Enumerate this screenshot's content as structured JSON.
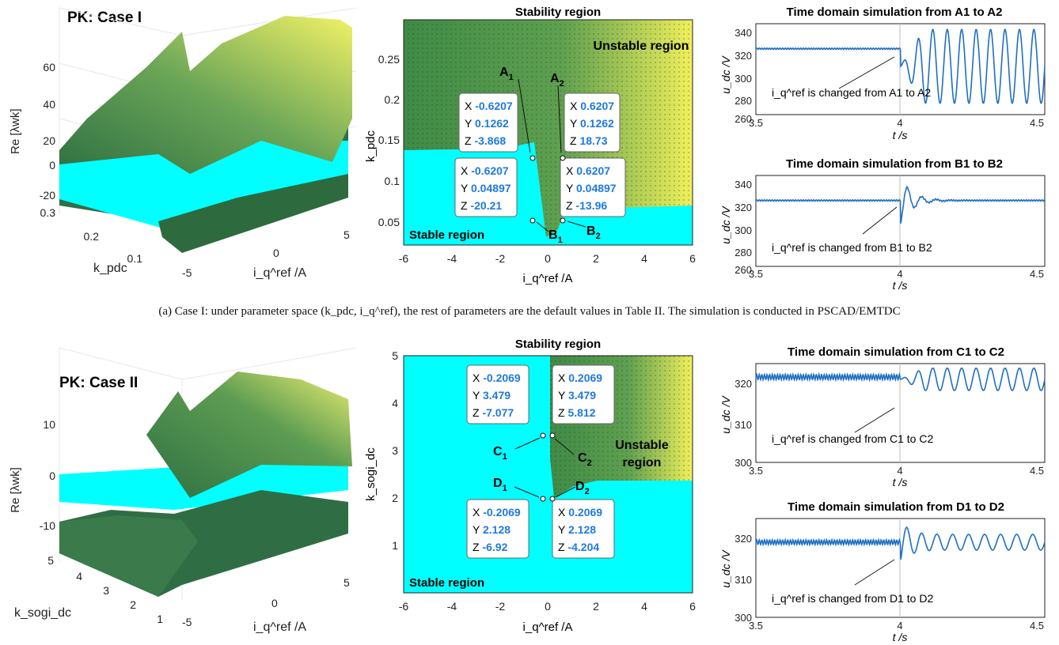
{
  "caption_a": "(a) Case I: under parameter space (k_pdc, i_q^ref), the rest of parameters are the default values in Table II. The simulation is conducted in PSCAD/EMTDC",
  "colors": {
    "stable": "#00ffff",
    "unstable_dark": "#3f8a46",
    "unstable_light": "#f0f05a",
    "trace": "#1f6fc4",
    "datatip_value": "#1f7ae0"
  },
  "case1": {
    "surface_title": "PK: Case I",
    "surface_zlabel": "Re [λwk]",
    "surface_xlabel": "k_pdc",
    "surface_ylabel": "i_q^ref /A",
    "surface_zticks": [
      "60",
      "40",
      "20",
      "0",
      "-20"
    ],
    "surface_xticks": [
      "0.3",
      "0.2",
      "0.1"
    ],
    "surface_yticks": [
      "-5",
      "0",
      "5"
    ],
    "region_title": "Stability region",
    "region_ylabel": "k_pdc",
    "region_xlabel": "i_q^ref /A",
    "region_xticks": [
      "-6",
      "-4",
      "-2",
      "0",
      "2",
      "4",
      "6"
    ],
    "region_yticks": [
      "0.25",
      "0.2",
      "0.15",
      "0.1",
      "0.05"
    ],
    "unstable_label": "Unstable region",
    "stable_label": "Stable region",
    "points": [
      {
        "name": "A1",
        "x": "-0.6207",
        "y": "0.1262",
        "z": "-3.868"
      },
      {
        "name": "A2",
        "x": "0.6207",
        "y": "0.1262",
        "z": "18.73"
      },
      {
        "name": "B1",
        "x": "-0.6207",
        "y": "0.04897",
        "z": "-20.21"
      },
      {
        "name": "B2",
        "x": "0.6207",
        "y": "0.04897",
        "z": "-13.96"
      }
    ],
    "sim1_title": "Time domain simulation from A1 to A2",
    "sim2_title": "Time domain simulation from B1 to B2",
    "sim_ylabel": "u_dc /V",
    "sim_xlabel": "t /s",
    "sim_yticks": [
      "340",
      "320",
      "300",
      "280",
      "260"
    ],
    "sim_xticks": [
      "3.5",
      "4",
      "4.5"
    ],
    "sim1_annot": "i_q^ref is changed from A1 to A2",
    "sim2_annot": "i_q^ref is changed from B1 to B2"
  },
  "case2": {
    "surface_title": "PK: Case II",
    "surface_zlabel": "Re [λwk]",
    "surface_xlabel": "k_sogi_dc",
    "surface_ylabel": "i_q^ref /A",
    "surface_zticks": [
      "10",
      "0",
      "-10"
    ],
    "surface_xticks": [
      "5",
      "4",
      "3",
      "2",
      "1"
    ],
    "surface_yticks": [
      "-5",
      "0",
      "5"
    ],
    "region_title": "Stability region",
    "region_ylabel": "k_sogi_dc",
    "region_xlabel": "i_q^ref /A",
    "region_xticks": [
      "-6",
      "-4",
      "-2",
      "0",
      "2",
      "4",
      "6"
    ],
    "region_yticks": [
      "5",
      "4",
      "3",
      "2",
      "1"
    ],
    "unstable_label": "Unstable region",
    "stable_label": "Stable region",
    "points": [
      {
        "name": "C1",
        "x": "-0.2069",
        "y": "3.479",
        "z": "-7.077"
      },
      {
        "name": "C2",
        "x": "0.2069",
        "y": "3.479",
        "z": "5.812"
      },
      {
        "name": "D1",
        "x": "-0.2069",
        "y": "2.128",
        "z": "-6.92"
      },
      {
        "name": "D2",
        "x": "0.2069",
        "y": "2.128",
        "z": "-4.204"
      }
    ],
    "sim1_title": "Time domain simulation from C1 to C2",
    "sim2_title": "Time domain simulation from D1 to D2",
    "sim_ylabel": "u_dc /V",
    "sim_xlabel": "t /s",
    "sim_yticks": [
      "320",
      "310",
      "300"
    ],
    "sim_xticks": [
      "3.5",
      "4",
      "4.5"
    ],
    "sim1_annot": "i_q^ref is changed from C1 to C2",
    "sim2_annot": "i_q^ref is changed from D1 to D2"
  },
  "chart_data": [
    {
      "type": "surface",
      "title": "PK: Case I",
      "xlabel": "k_pdc",
      "ylabel": "i_q^ref /A",
      "zlabel": "Re [λwk]",
      "zlim": [
        -20,
        60
      ]
    },
    {
      "type": "heatmap",
      "title": "Stability region",
      "xlabel": "i_q^ref /A",
      "ylabel": "k_pdc",
      "xlim": [
        -6,
        6
      ],
      "ylim": [
        0.02,
        0.3
      ],
      "regions": [
        {
          "name": "Stable region",
          "boundary_k_pdc_left": 0.13,
          "boundary_k_pdc_right": 0.06
        },
        {
          "name": "Unstable region"
        }
      ],
      "points": [
        {
          "name": "A1",
          "x": -0.6207,
          "y": 0.1262,
          "z": -3.868
        },
        {
          "name": "A2",
          "x": 0.6207,
          "y": 0.1262,
          "z": 18.73
        },
        {
          "name": "B1",
          "x": -0.6207,
          "y": 0.04897,
          "z": -20.21
        },
        {
          "name": "B2",
          "x": 0.6207,
          "y": 0.04897,
          "z": -13.96
        }
      ]
    },
    {
      "type": "line",
      "title": "Time domain simulation from A1 to A2",
      "xlabel": "t /s",
      "ylabel": "u_dc /V",
      "xlim": [
        3.5,
        4.5
      ],
      "ylim": [
        260,
        340
      ],
      "change_time": 4.0,
      "before_mean": 318,
      "after_range": [
        270,
        335
      ]
    },
    {
      "type": "line",
      "title": "Time domain simulation from B1 to B2",
      "xlabel": "t /s",
      "ylabel": "u_dc /V",
      "xlim": [
        3.5,
        4.5
      ],
      "ylim": [
        260,
        340
      ],
      "change_time": 4.0,
      "before_mean": 318,
      "dip_min": 297,
      "after_mean": 318
    },
    {
      "type": "surface",
      "title": "PK: Case II",
      "xlabel": "k_sogi_dc",
      "ylabel": "i_q^ref /A",
      "zlabel": "Re [λwk]",
      "zlim": [
        -15,
        15
      ]
    },
    {
      "type": "heatmap",
      "title": "Stability region",
      "xlabel": "i_q^ref /A",
      "ylabel": "k_sogi_dc",
      "xlim": [
        -6,
        6
      ],
      "ylim": [
        0,
        5
      ],
      "points": [
        {
          "name": "C1",
          "x": -0.2069,
          "y": 3.479,
          "z": -7.077
        },
        {
          "name": "C2",
          "x": 0.2069,
          "y": 3.479,
          "z": 5.812
        },
        {
          "name": "D1",
          "x": -0.2069,
          "y": 2.128,
          "z": -6.92
        },
        {
          "name": "D2",
          "x": 0.2069,
          "y": 2.128,
          "z": -4.204
        }
      ]
    },
    {
      "type": "line",
      "title": "Time domain simulation from C1 to C2",
      "xlabel": "t /s",
      "ylabel": "u_dc /V",
      "xlim": [
        3.5,
        4.5
      ],
      "ylim": [
        300,
        322
      ],
      "change_time": 4.0,
      "before_mean": 319,
      "after_range": [
        316,
        321
      ]
    },
    {
      "type": "line",
      "title": "Time domain simulation from D1 to D2",
      "xlabel": "t /s",
      "ylabel": "u_dc /V",
      "xlim": [
        3.5,
        4.5
      ],
      "ylim": [
        300,
        325
      ],
      "change_time": 4.0,
      "before_mean": 319,
      "dip_min": 314,
      "after_range": [
        317,
        321
      ]
    }
  ]
}
